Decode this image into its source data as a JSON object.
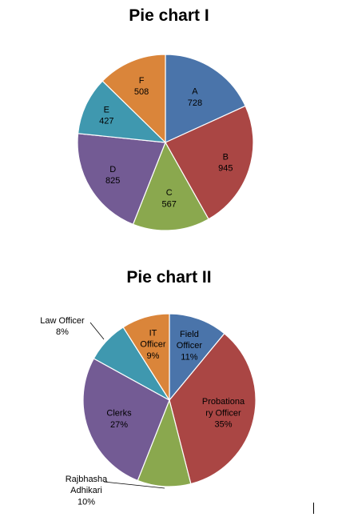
{
  "chart_data": [
    {
      "type": "pie",
      "title": "Pie chart I",
      "slices": [
        {
          "label": "A",
          "value": 728,
          "display": "728",
          "color": "#4a74aa"
        },
        {
          "label": "B",
          "value": 945,
          "display": "945",
          "color": "#aa4644"
        },
        {
          "label": "C",
          "value": 567,
          "display": "567",
          "color": "#8aa84e"
        },
        {
          "label": "D",
          "value": 825,
          "display": "825",
          "color": "#735b94"
        },
        {
          "label": "E",
          "value": 427,
          "display": "427",
          "color": "#3f98af"
        },
        {
          "label": "F",
          "value": 508,
          "display": "508",
          "color": "#da853a"
        }
      ]
    },
    {
      "type": "pie",
      "title": "Pie chart II",
      "slices": [
        {
          "label": "Field Officer",
          "lines": [
            "Field",
            "Officer"
          ],
          "value": 11,
          "display": "11%",
          "color": "#4a74aa"
        },
        {
          "label": "Probationary Officer",
          "lines": [
            "Probationa",
            "ry Officer"
          ],
          "value": 35,
          "display": "35%",
          "color": "#aa4644"
        },
        {
          "label": "Rajbhasha Adhikari",
          "lines": [
            "Rajbhasha",
            "Adhikari"
          ],
          "value": 10,
          "display": "10%",
          "color": "#8aa84e",
          "external": true
        },
        {
          "label": "Clerks",
          "lines": [
            "Clerks"
          ],
          "value": 27,
          "display": "27%",
          "color": "#735b94"
        },
        {
          "label": "Law Officer",
          "lines": [
            "Law Officer"
          ],
          "value": 8,
          "display": "8%",
          "color": "#3f98af",
          "external": true
        },
        {
          "label": "IT Officer",
          "lines": [
            "IT",
            "Officer"
          ],
          "value": 9,
          "display": "9%",
          "color": "#da853a"
        }
      ]
    }
  ]
}
